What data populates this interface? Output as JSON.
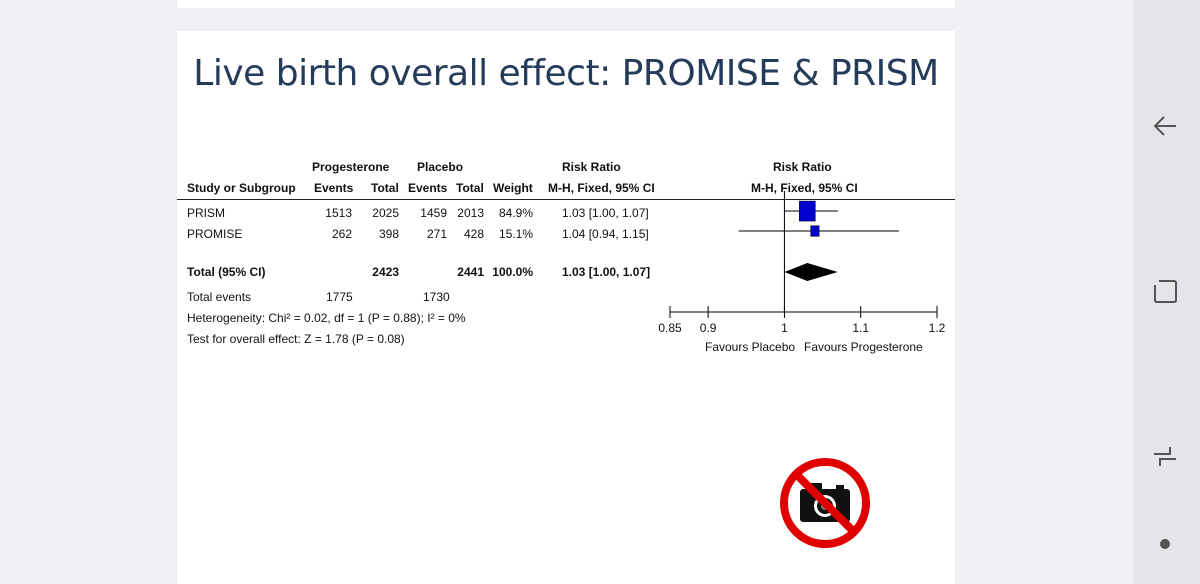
{
  "slide": {
    "title": "Live birth overall effect: PROMISE & PRISM"
  },
  "table": {
    "group_headers": {
      "experimental": "Progesterone",
      "control": "Placebo",
      "ratio": "Risk Ratio"
    },
    "columns": {
      "study": "Study or Subgroup",
      "exp_events": "Events",
      "exp_total": "Total",
      "ctrl_events": "Events",
      "ctrl_total": "Total",
      "weight": "Weight",
      "ci": "M-H, Fixed, 95% CI"
    },
    "rows": [
      {
        "study": "PRISM",
        "exp_events": "1513",
        "exp_total": "2025",
        "ctrl_events": "1459",
        "ctrl_total": "2013",
        "weight": "84.9%",
        "ci": "1.03 [1.00, 1.07]"
      },
      {
        "study": "PROMISE",
        "exp_events": "262",
        "exp_total": "398",
        "ctrl_events": "271",
        "ctrl_total": "428",
        "weight": "15.1%",
        "ci": "1.04 [0.94, 1.15]"
      }
    ],
    "total": {
      "label": "Total (95% CI)",
      "exp_total": "2423",
      "ctrl_total": "2441",
      "weight": "100.0%",
      "ci": "1.03 [1.00, 1.07]"
    },
    "total_events": {
      "label": "Total events",
      "exp_events": "1775",
      "ctrl_events": "1730"
    },
    "heterogeneity": "Heterogeneity: Chi² = 0.02, df = 1 (P = 0.88); I² = 0%",
    "overall_test": "Test for overall effect: Z = 1.78 (P = 0.08)"
  },
  "chart_data": {
    "type": "forest",
    "title": "Risk Ratio",
    "subtitle": "M-H, Fixed, 95% CI",
    "x_ticks": [
      0.85,
      0.9,
      1,
      1.1,
      1.2
    ],
    "x_tick_labels": [
      "0.85",
      "0.9",
      "1",
      "1.1",
      "1.2"
    ],
    "xlim": [
      0.85,
      1.2
    ],
    "reference_line": 1,
    "favours_left": "Favours Placebo",
    "favours_right": "Favours Progesterone",
    "studies": [
      {
        "name": "PRISM",
        "estimate": 1.03,
        "lower": 1.0,
        "upper": 1.07,
        "weight": 84.9
      },
      {
        "name": "PROMISE",
        "estimate": 1.04,
        "lower": 0.94,
        "upper": 1.15,
        "weight": 15.1
      }
    ],
    "overall": {
      "estimate": 1.03,
      "lower": 1.0,
      "upper": 1.07
    },
    "colors": {
      "box": "#0000cc",
      "diamond": "#000000"
    }
  },
  "overlay": {
    "icon": "no-camera-icon",
    "color": "#e00000"
  },
  "nav": {
    "back": "back-arrow-icon",
    "recents": "recents-icon",
    "home": "home-dot-icon",
    "menu": "swap-lines-icon"
  }
}
